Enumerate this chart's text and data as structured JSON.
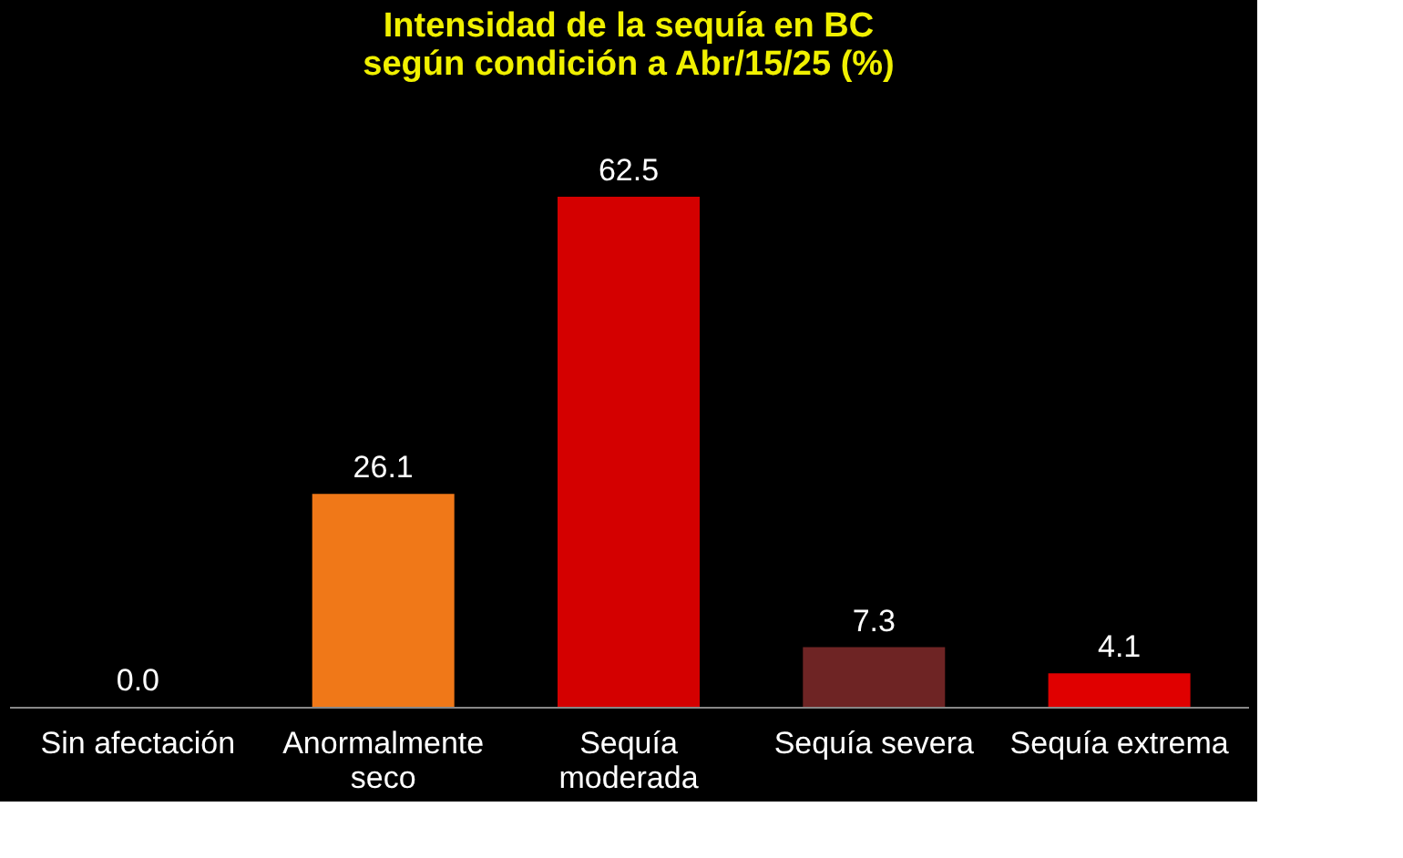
{
  "chart_data": {
    "type": "bar",
    "title": "Intensidad de la sequía en BC\nsegún condición a Abr/15/25 (%)",
    "categories": [
      "Sin afectación",
      "Anormalmente seco",
      "Sequía moderada",
      "Sequía severa",
      "Sequía extrema"
    ],
    "values": [
      0.0,
      26.1,
      62.5,
      7.3,
      4.1
    ],
    "colors": [
      "#f07818",
      "#f07818",
      "#d40000",
      "#6e2424",
      "#e00000"
    ],
    "value_labels": [
      "0.0",
      "26.1",
      "62.5",
      "7.3",
      "4.1"
    ]
  }
}
